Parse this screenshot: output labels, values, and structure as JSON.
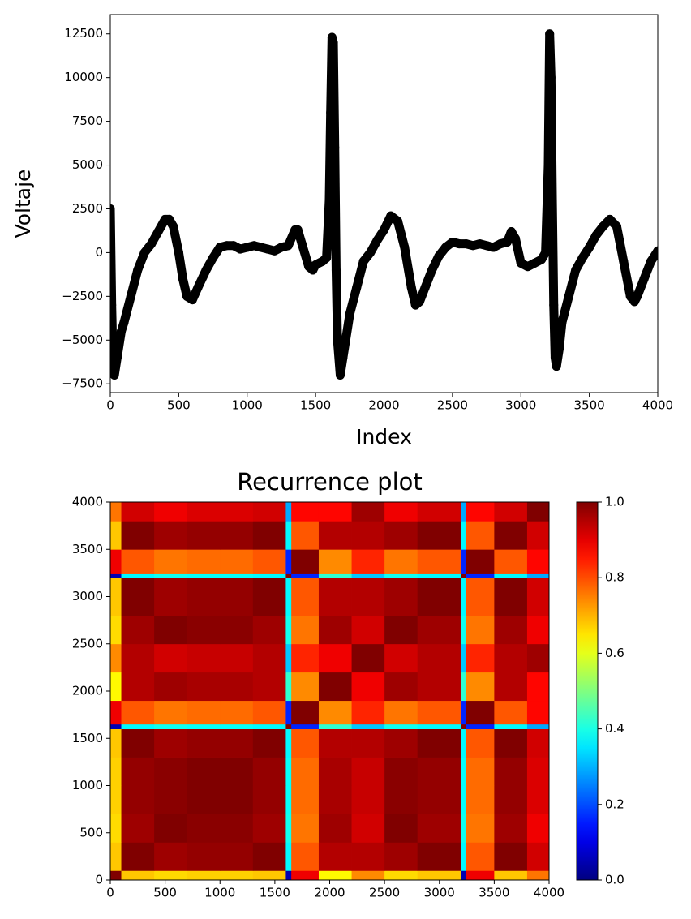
{
  "chart_data": [
    {
      "type": "line",
      "xlabel": "Index",
      "ylabel": "Voltaje",
      "color": "#000000",
      "xlim": [
        0,
        4000
      ],
      "xticks": [
        0,
        500,
        1000,
        1500,
        2000,
        2500,
        3000,
        3500,
        4000
      ],
      "ylim": [
        -8000,
        13600
      ],
      "yticks": [
        {
          "value": -7500,
          "label": "−7500"
        },
        {
          "value": -5000,
          "label": "−5000"
        },
        {
          "value": -2500,
          "label": "−2500"
        },
        0,
        2500,
        5000,
        7500,
        10000,
        12500
      ],
      "x": [
        0,
        10,
        20,
        30,
        50,
        80,
        100,
        150,
        200,
        250,
        300,
        350,
        400,
        430,
        460,
        500,
        530,
        560,
        600,
        640,
        700,
        750,
        800,
        850,
        900,
        950,
        1000,
        1050,
        1100,
        1150,
        1200,
        1250,
        1300,
        1350,
        1370,
        1400,
        1450,
        1480,
        1500,
        1550,
        1580,
        1600,
        1610,
        1620,
        1630,
        1640,
        1650,
        1660,
        1680,
        1700,
        1750,
        1800,
        1850,
        1900,
        1950,
        2000,
        2050,
        2100,
        2150,
        2200,
        2230,
        2260,
        2300,
        2350,
        2400,
        2450,
        2500,
        2550,
        2600,
        2650,
        2700,
        2750,
        2800,
        2850,
        2900,
        2930,
        2960,
        3000,
        3050,
        3100,
        3150,
        3180,
        3200,
        3210,
        3220,
        3230,
        3240,
        3250,
        3260,
        3280,
        3300,
        3350,
        3400,
        3450,
        3500,
        3550,
        3600,
        3650,
        3700,
        3750,
        3800,
        3830,
        3850,
        3900,
        3950,
        4000
      ],
      "values": [
        2500,
        -3000,
        -6500,
        -7000,
        -6000,
        -4500,
        -4000,
        -2500,
        -1000,
        0,
        500,
        1200,
        1900,
        1900,
        1500,
        0,
        -1500,
        -2500,
        -2700,
        -2000,
        -1000,
        -300,
        300,
        400,
        400,
        200,
        300,
        400,
        300,
        200,
        100,
        300,
        400,
        1300,
        1300,
        500,
        -800,
        -1000,
        -700,
        -500,
        -300,
        3000,
        8000,
        12300,
        12000,
        6000,
        -1000,
        -5000,
        -7000,
        -6000,
        -3500,
        -2000,
        -500,
        0,
        700,
        1300,
        2100,
        1800,
        300,
        -2000,
        -3000,
        -2800,
        -2000,
        -1000,
        -200,
        300,
        600,
        500,
        500,
        400,
        500,
        400,
        300,
        500,
        600,
        1200,
        800,
        -600,
        -800,
        -600,
        -400,
        0,
        5000,
        12500,
        10000,
        3000,
        -3000,
        -6000,
        -6500,
        -5500,
        -4000,
        -2500,
        -1000,
        -300,
        300,
        1000,
        1500,
        1900,
        1500,
        -500,
        -2500,
        -2800,
        -2500,
        -1500,
        -500,
        100
      ]
    },
    {
      "type": "heatmap",
      "title": "Recurrence plot",
      "colormap": "jet",
      "clim": [
        0,
        1
      ],
      "xlim": [
        0,
        4000
      ],
      "ylim": [
        0,
        4000
      ],
      "xticks": [
        0,
        500,
        1000,
        1500,
        2000,
        2500,
        3000,
        3500,
        4000
      ],
      "yticks": [
        0,
        500,
        1000,
        1500,
        2000,
        2500,
        3000,
        3500,
        4000
      ],
      "colorbar_ticks": [
        {
          "value": 0,
          "label": "0.0"
        },
        {
          "value": 0.2,
          "label": "0.2"
        },
        {
          "value": 0.4,
          "label": "0.4"
        },
        {
          "value": 0.6,
          "label": "0.6"
        },
        {
          "value": 0.8,
          "label": "0.8"
        },
        {
          "value": 1,
          "label": "1.0"
        }
      ],
      "x_edges": [
        0,
        100,
        400,
        700,
        1000,
        1300,
        1600,
        1650,
        1900,
        2200,
        2500,
        2800,
        3200,
        3240,
        3500,
        3800,
        4000
      ],
      "y_edges": [
        0,
        100,
        400,
        700,
        1000,
        1300,
        1600,
        1650,
        1900,
        2200,
        2500,
        2800,
        3200,
        3240,
        3500,
        3800,
        4000
      ],
      "values": [
        [
          1,
          0.68,
          0.66,
          0.67,
          0.67,
          0.68,
          0.05,
          0.89,
          0.63,
          0.74,
          0.66,
          0.68,
          0.05,
          0.89,
          0.68,
          0.76
        ],
        [
          0.68,
          1,
          0.97,
          0.98,
          0.98,
          1,
          0.37,
          0.79,
          0.95,
          0.95,
          0.97,
          1,
          0.37,
          0.79,
          1,
          0.92
        ],
        [
          0.66,
          0.97,
          1,
          0.99,
          0.99,
          0.97,
          0.39,
          0.76,
          0.97,
          0.92,
          1,
          0.97,
          0.39,
          0.76,
          0.97,
          0.89
        ],
        [
          0.67,
          0.98,
          0.99,
          1,
          1,
          0.98,
          0.38,
          0.77,
          0.96,
          0.93,
          0.99,
          0.98,
          0.38,
          0.77,
          0.98,
          0.91
        ],
        [
          0.67,
          0.98,
          0.99,
          1,
          1,
          0.98,
          0.38,
          0.77,
          0.96,
          0.93,
          0.99,
          0.98,
          0.38,
          0.77,
          0.98,
          0.91
        ],
        [
          0.68,
          1,
          0.97,
          0.98,
          0.98,
          1,
          0.37,
          0.79,
          0.95,
          0.95,
          0.97,
          1,
          0.37,
          0.79,
          1,
          0.92
        ],
        [
          0.05,
          0.37,
          0.39,
          0.38,
          0.38,
          0.37,
          1,
          0.16,
          0.42,
          0.32,
          0.39,
          0.37,
          1,
          0.16,
          0.37,
          0.29
        ],
        [
          0.89,
          0.79,
          0.76,
          0.77,
          0.77,
          0.79,
          0.16,
          1,
          0.74,
          0.84,
          0.76,
          0.79,
          0.16,
          1,
          0.79,
          0.87
        ],
        [
          0.63,
          0.95,
          0.97,
          0.96,
          0.96,
          0.95,
          0.42,
          0.74,
          1,
          0.89,
          0.97,
          0.95,
          0.42,
          0.74,
          0.95,
          0.87
        ],
        [
          0.74,
          0.95,
          0.92,
          0.93,
          0.93,
          0.95,
          0.32,
          0.84,
          0.89,
          1,
          0.92,
          0.95,
          0.32,
          0.84,
          0.95,
          0.97
        ],
        [
          0.66,
          0.97,
          1,
          0.99,
          0.99,
          0.97,
          0.39,
          0.76,
          0.97,
          0.92,
          1,
          0.97,
          0.39,
          0.76,
          0.97,
          0.89
        ],
        [
          0.68,
          1,
          0.97,
          0.98,
          0.98,
          1,
          0.37,
          0.79,
          0.95,
          0.95,
          0.97,
          1,
          0.37,
          0.79,
          1,
          0.92
        ],
        [
          0.05,
          0.37,
          0.39,
          0.38,
          0.38,
          0.37,
          1,
          0.16,
          0.42,
          0.32,
          0.39,
          0.37,
          1,
          0.16,
          0.37,
          0.29
        ],
        [
          0.89,
          0.79,
          0.76,
          0.77,
          0.77,
          0.79,
          0.16,
          1,
          0.74,
          0.84,
          0.76,
          0.79,
          0.16,
          1,
          0.79,
          0.87
        ],
        [
          0.68,
          1,
          0.97,
          0.98,
          0.98,
          1,
          0.37,
          0.79,
          0.95,
          0.95,
          0.97,
          1,
          0.37,
          0.79,
          1,
          0.92
        ],
        [
          0.76,
          0.92,
          0.89,
          0.91,
          0.91,
          0.92,
          0.29,
          0.87,
          0.87,
          0.97,
          0.89,
          0.92,
          0.29,
          0.87,
          0.92,
          1
        ]
      ]
    }
  ]
}
